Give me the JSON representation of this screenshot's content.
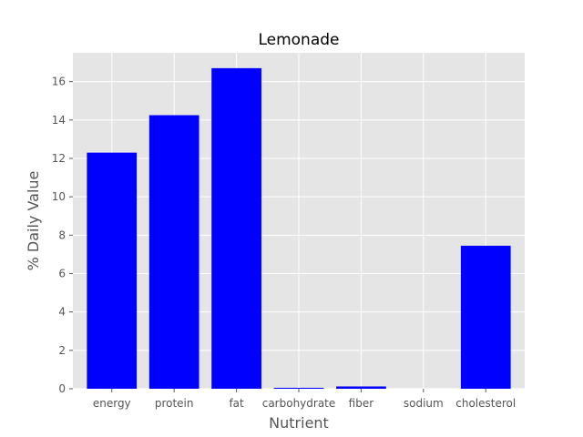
{
  "chart_data": {
    "type": "bar",
    "title": "Lemonade",
    "xlabel": "Nutrient",
    "ylabel": "% Daily Value",
    "categories": [
      "energy",
      "protein",
      "fat",
      "carbohydrate",
      "fiber",
      "sodium",
      "cholesterol"
    ],
    "values": [
      12.3,
      14.25,
      16.7,
      0.05,
      0.12,
      0.0,
      7.45
    ],
    "ylim": [
      0,
      17.5
    ],
    "yticks": [
      0,
      2,
      4,
      6,
      8,
      10,
      12,
      14,
      16
    ],
    "grid": true,
    "colors": {
      "bar": "#0000ff",
      "plot_background": "#e5e5e5",
      "grid": "#ffffff"
    }
  }
}
